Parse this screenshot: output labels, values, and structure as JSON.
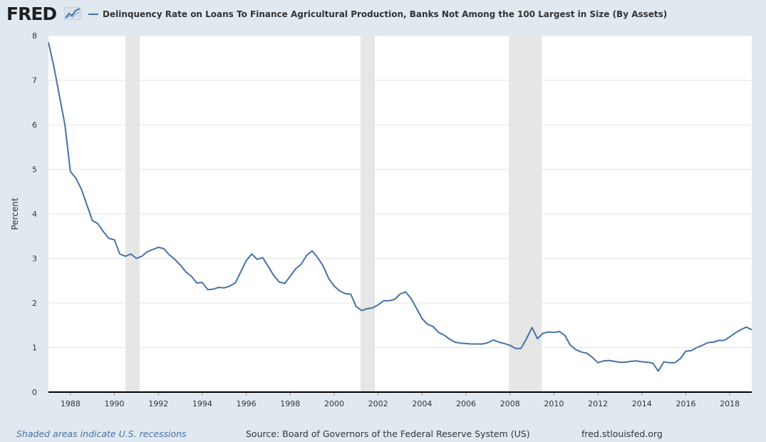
{
  "header": {
    "logo_text": "FRED",
    "logo_icon": "line-chart-icon",
    "legend_label": "Delinquency Rate on Loans To Finance Agricultural Production, Banks Not Among the 100 Largest in Size (By Assets)"
  },
  "footer": {
    "recession_note": "Shaded areas indicate U.S. recessions",
    "source": "Source: Board of Governors of the Federal Reserve System (US)",
    "site": "fred.stlouisfed.org"
  },
  "colors": {
    "background": "#e1e9f0",
    "plot_background": "#ffffff",
    "series_line": "#4572a7",
    "recession_band": "#e6e6e6",
    "gridline": "#e6e6e6"
  },
  "chart_data": {
    "type": "line",
    "title": "",
    "xlabel": "",
    "ylabel": "Percent",
    "xlim": [
      1987.0,
      2019.0
    ],
    "ylim": [
      0,
      8
    ],
    "grid": true,
    "legend_placement": "top-left",
    "x_ticks": [
      "1988",
      "1990",
      "1992",
      "1994",
      "1996",
      "1998",
      "2000",
      "2002",
      "2004",
      "2006",
      "2008",
      "2010",
      "2012",
      "2014",
      "2016",
      "2018"
    ],
    "y_ticks": [
      "0",
      "1",
      "2",
      "3",
      "4",
      "5",
      "6",
      "7",
      "8"
    ],
    "recessions": [
      [
        1990.5,
        1991.15
      ],
      [
        2001.2,
        2001.85
      ],
      [
        2007.95,
        2009.45
      ]
    ],
    "series": [
      {
        "name": "Delinquency Rate on Loans To Finance Agricultural Production, Banks Not Among the 100 Largest in Size (By Assets)",
        "x": [
          1987.0,
          1987.25,
          1987.5,
          1987.75,
          1988.0,
          1988.25,
          1988.5,
          1988.75,
          1989.0,
          1989.25,
          1989.5,
          1989.75,
          1990.0,
          1990.25,
          1990.5,
          1990.75,
          1991.0,
          1991.25,
          1991.5,
          1991.75,
          1992.0,
          1992.25,
          1992.5,
          1992.75,
          1993.0,
          1993.25,
          1993.5,
          1993.75,
          1994.0,
          1994.25,
          1994.5,
          1994.75,
          1995.0,
          1995.25,
          1995.5,
          1995.75,
          1996.0,
          1996.25,
          1996.5,
          1996.75,
          1997.0,
          1997.25,
          1997.5,
          1997.75,
          1998.0,
          1998.25,
          1998.5,
          1998.75,
          1999.0,
          1999.25,
          1999.5,
          1999.75,
          2000.0,
          2000.25,
          2000.5,
          2000.75,
          2001.0,
          2001.25,
          2001.5,
          2001.75,
          2002.0,
          2002.25,
          2002.5,
          2002.75,
          2003.0,
          2003.25,
          2003.5,
          2003.75,
          2004.0,
          2004.25,
          2004.5,
          2004.75,
          2005.0,
          2005.25,
          2005.5,
          2005.75,
          2006.0,
          2006.25,
          2006.5,
          2006.75,
          2007.0,
          2007.25,
          2007.5,
          2007.75,
          2008.0,
          2008.25,
          2008.5,
          2008.75,
          2009.0,
          2009.25,
          2009.5,
          2009.75,
          2010.0,
          2010.25,
          2010.5,
          2010.75,
          2011.0,
          2011.25,
          2011.5,
          2011.75,
          2012.0,
          2012.25,
          2012.5,
          2012.75,
          2013.0,
          2013.25,
          2013.5,
          2013.75,
          2014.0,
          2014.25,
          2014.5,
          2014.75,
          2015.0,
          2015.25,
          2015.5,
          2015.75,
          2016.0,
          2016.25,
          2016.5,
          2016.75,
          2017.0,
          2017.25,
          2017.5,
          2017.75,
          2018.0,
          2018.25,
          2018.5,
          2018.75,
          2019.0
        ],
        "values": [
          7.85,
          7.3,
          6.65,
          6.0,
          4.95,
          4.8,
          4.55,
          4.2,
          3.85,
          3.78,
          3.6,
          3.45,
          3.42,
          3.1,
          3.05,
          3.1,
          3.0,
          3.05,
          3.15,
          3.2,
          3.25,
          3.22,
          3.08,
          2.98,
          2.85,
          2.7,
          2.6,
          2.45,
          2.46,
          2.3,
          2.31,
          2.35,
          2.34,
          2.38,
          2.45,
          2.7,
          2.95,
          3.1,
          2.98,
          3.02,
          2.82,
          2.62,
          2.47,
          2.44,
          2.6,
          2.77,
          2.87,
          3.07,
          3.17,
          3.02,
          2.83,
          2.55,
          2.38,
          2.27,
          2.21,
          2.2,
          1.92,
          1.83,
          1.87,
          1.89,
          1.96,
          2.05,
          2.05,
          2.08,
          2.2,
          2.25,
          2.1,
          1.88,
          1.65,
          1.52,
          1.47,
          1.34,
          1.28,
          1.19,
          1.12,
          1.1,
          1.09,
          1.08,
          1.08,
          1.08,
          1.11,
          1.17,
          1.12,
          1.09,
          1.05,
          0.98,
          0.98,
          1.2,
          1.45,
          1.2,
          1.32,
          1.35,
          1.34,
          1.36,
          1.27,
          1.05,
          0.95,
          0.9,
          0.87,
          0.78,
          0.66,
          0.7,
          0.71,
          0.69,
          0.67,
          0.67,
          0.69,
          0.7,
          0.68,
          0.67,
          0.65,
          0.47,
          0.68,
          0.66,
          0.66,
          0.75,
          0.92,
          0.93,
          1.0,
          1.05,
          1.11,
          1.12,
          1.16,
          1.16,
          1.24,
          1.33,
          1.4,
          1.46,
          1.4
        ]
      }
    ]
  }
}
